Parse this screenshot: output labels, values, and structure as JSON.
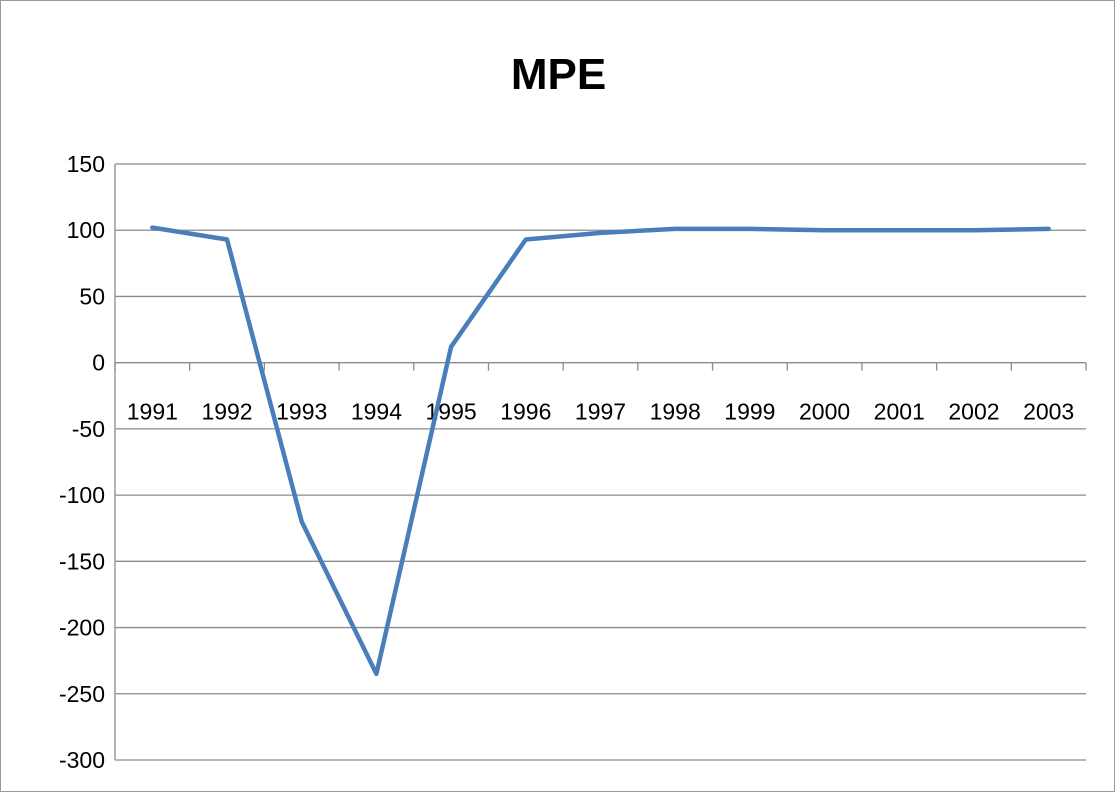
{
  "chart_data": {
    "type": "line",
    "title": "MPE",
    "xlabel": "",
    "ylabel": "",
    "categories": [
      "1991",
      "1992",
      "1993",
      "1994",
      "1995",
      "1996",
      "1997",
      "1998",
      "1999",
      "2000",
      "2001",
      "2002",
      "2003"
    ],
    "series": [
      {
        "color": "#4a7ebb",
        "points": [
          {
            "x": 1991.0,
            "y": 102
          },
          {
            "x": 1992.0,
            "y": 93
          },
          {
            "x": 1993.0,
            "y": -120
          },
          {
            "x": 1994.0,
            "y": -235
          },
          {
            "x": 1995.0,
            "y": 12
          },
          {
            "x": 1996.0,
            "y": 93
          },
          {
            "x": 1997.0,
            "y": 98
          },
          {
            "x": 1998.0,
            "y": 101
          },
          {
            "x": 1999.0,
            "y": 101
          },
          {
            "x": 2000.0,
            "y": 100
          },
          {
            "x": 2001.0,
            "y": 100
          },
          {
            "x": 2002.0,
            "y": 100
          },
          {
            "x": 2003.0,
            "y": 101
          }
        ]
      }
    ],
    "ylim": [
      -300,
      150
    ],
    "ystep": 50,
    "yticks": [
      "150",
      "100",
      "50",
      "0",
      "-50",
      "-100",
      "-150",
      "-200",
      "-250",
      "-300"
    ],
    "grid": true,
    "legend": "none"
  }
}
